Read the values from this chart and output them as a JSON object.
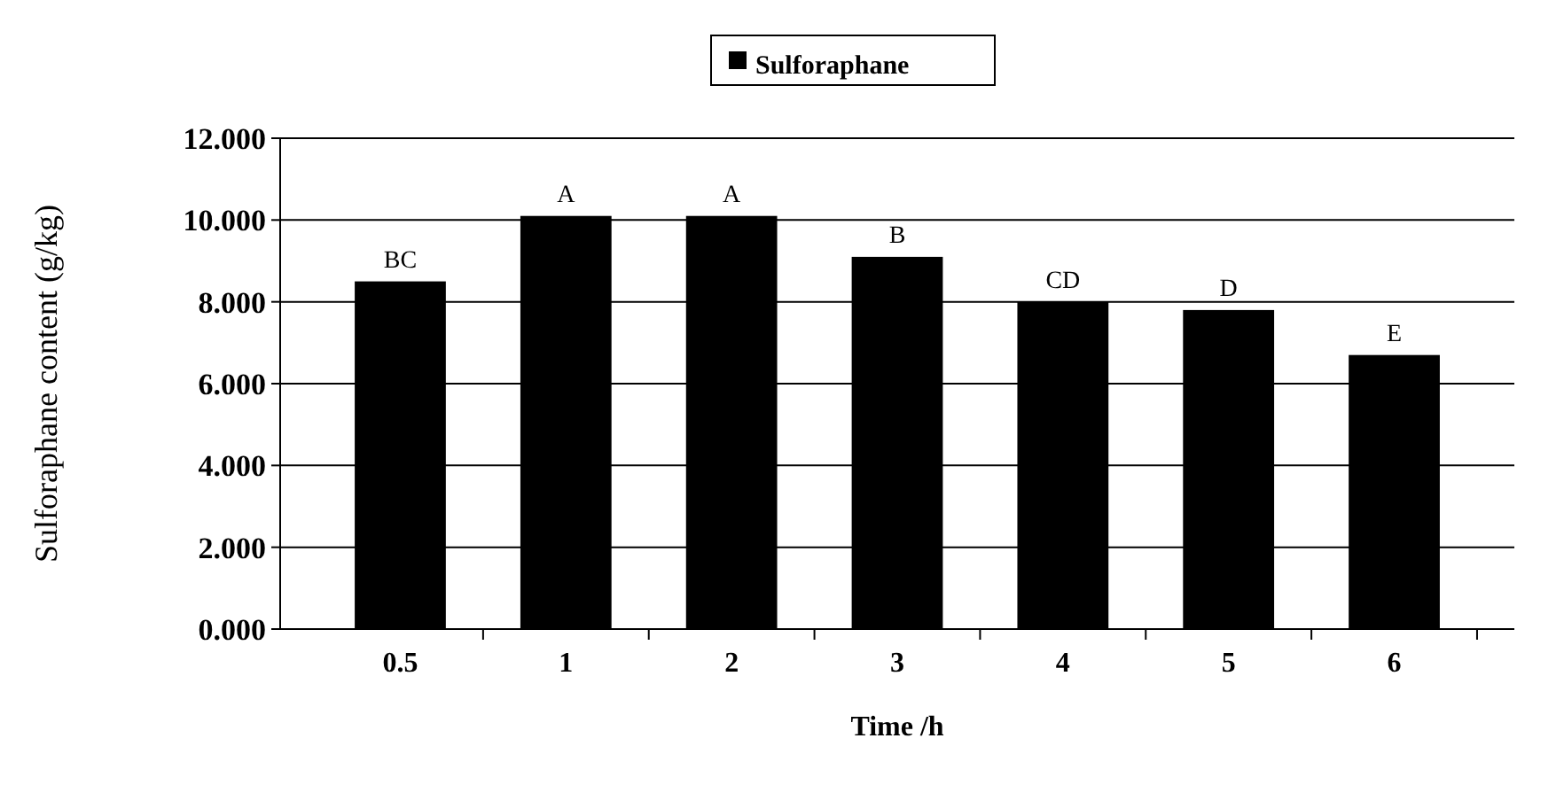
{
  "chart_data": {
    "type": "bar",
    "xlabel": "Time /h",
    "ylabel": "Sulforaphane content (g/kg)",
    "categories": [
      "0.5",
      "1",
      "2",
      "3",
      "4",
      "5",
      "6"
    ],
    "series": [
      {
        "name": "Sulforaphane",
        "color": "#000000",
        "values": [
          8.5,
          10.1,
          10.1,
          9.1,
          8.0,
          7.8,
          6.7
        ]
      }
    ],
    "ylim": [
      0,
      12
    ],
    "yticks": [
      {
        "value": 0,
        "label": "0.000"
      },
      {
        "value": 2,
        "label": "2.000"
      },
      {
        "value": 4,
        "label": "4.000"
      },
      {
        "value": 6,
        "label": "6.000"
      },
      {
        "value": 8,
        "label": "8.000"
      },
      {
        "value": 10,
        "label": "10.000"
      },
      {
        "value": 12,
        "label": "12.000"
      }
    ],
    "grid": "y",
    "legend": "top",
    "annotations": [
      {
        "text": "BC",
        "x": "0.5",
        "y": 8.5
      },
      {
        "text": "A",
        "x": "1",
        "y": 10.1
      },
      {
        "text": "A",
        "x": "2",
        "y": 10.1
      },
      {
        "text": "B",
        "x": "3",
        "y": 9.1
      },
      {
        "text": "CD",
        "x": "4",
        "y": 8.0
      },
      {
        "text": "D",
        "x": "5",
        "y": 7.8
      },
      {
        "text": "E",
        "x": "6",
        "y": 6.7
      }
    ]
  }
}
